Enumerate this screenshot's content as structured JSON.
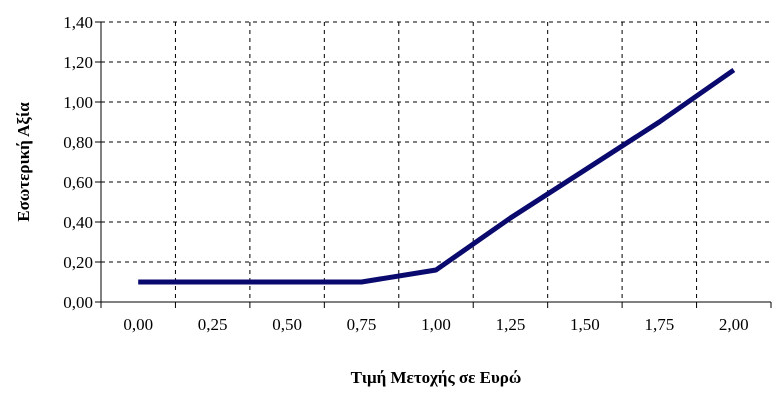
{
  "chart_data": {
    "type": "line",
    "title": "",
    "xlabel": "Τιμή Μετοχής σε Ευρώ",
    "ylabel": "Εσωτερική Αξία",
    "x_ticks": [
      "0,00",
      "0,25",
      "0,50",
      "0,75",
      "1,00",
      "1,25",
      "1,50",
      "1,75",
      "2,00"
    ],
    "y_ticks": [
      "0,00",
      "0,20",
      "0,40",
      "0,60",
      "0,80",
      "1,00",
      "1,20",
      "1,40"
    ],
    "xlim": [
      -0.125,
      2.125
    ],
    "ylim": [
      0,
      1.4
    ],
    "grid": true,
    "legend": "none",
    "series": [
      {
        "color": "#0a0a6e",
        "x": [
          0.0,
          0.25,
          0.5,
          0.75,
          1.0,
          1.25,
          1.5,
          1.75,
          2.0
        ],
        "y": [
          0.1,
          0.1,
          0.1,
          0.1,
          0.16,
          0.42,
          0.66,
          0.9,
          1.16
        ]
      }
    ]
  }
}
